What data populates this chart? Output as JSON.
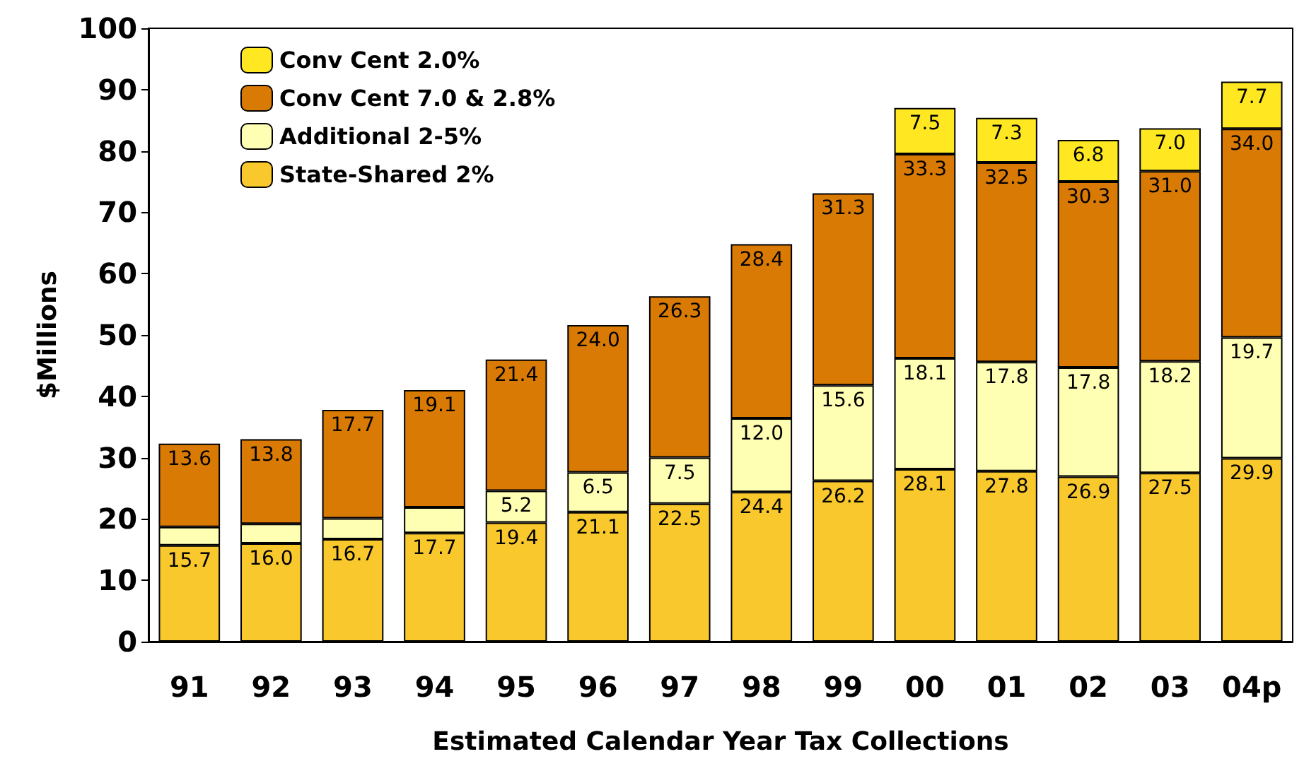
{
  "chart_data": {
    "type": "bar",
    "stacked": true,
    "xlabel": "Estimated Calendar Year Tax Collections",
    "ylabel": "$Millions",
    "categories": [
      "91",
      "92",
      "93",
      "94",
      "95",
      "96",
      "97",
      "98",
      "99",
      "00",
      "01",
      "02",
      "03",
      "04p"
    ],
    "ylim": [
      0,
      100
    ],
    "yticks": [
      0,
      10,
      20,
      30,
      40,
      50,
      60,
      70,
      80,
      90,
      100
    ],
    "grid": false,
    "legend": "top left",
    "series": [
      {
        "name": "State-Shared 2%",
        "color": "#f8c82c",
        "values": [
          15.7,
          16.0,
          16.7,
          17.7,
          19.4,
          21.1,
          22.5,
          24.4,
          26.2,
          28.1,
          27.8,
          26.9,
          27.5,
          29.9
        ],
        "value_labels": [
          "15.7",
          "16.0",
          "16.7",
          "17.7",
          "19.4",
          "21.1",
          "22.5",
          "24.4",
          "26.2",
          "28.1",
          "27.8",
          "26.9",
          "27.5",
          "29.9"
        ]
      },
      {
        "name": "Additional 2-5%",
        "color": "#ffffb3",
        "values": [
          3.0,
          3.2,
          3.4,
          4.2,
          5.2,
          6.5,
          7.5,
          12.0,
          15.6,
          18.1,
          17.8,
          17.8,
          18.2,
          19.7
        ],
        "value_labels": [
          null,
          null,
          null,
          null,
          "5.2",
          "6.5",
          "7.5",
          "12.0",
          "15.6",
          "18.1",
          "17.8",
          "17.8",
          "18.2",
          "19.7"
        ]
      },
      {
        "name": "Conv Cent 7.0 & 2.8%",
        "color": "#d97a05",
        "values": [
          13.6,
          13.8,
          17.7,
          19.1,
          21.4,
          24.0,
          26.3,
          28.4,
          31.3,
          33.3,
          32.5,
          30.3,
          31.0,
          34.0
        ],
        "value_labels": [
          "13.6",
          "13.8",
          "17.7",
          "19.1",
          "21.4",
          "24.0",
          "26.3",
          "28.4",
          "31.3",
          "33.3",
          "32.5",
          "30.3",
          "31.0",
          "34.0"
        ]
      },
      {
        "name": "Conv Cent 2.0%",
        "color": "#ffe822",
        "values": [
          null,
          null,
          null,
          null,
          null,
          null,
          null,
          null,
          null,
          7.5,
          7.3,
          6.8,
          7.0,
          7.7
        ],
        "value_labels": [
          null,
          null,
          null,
          null,
          null,
          null,
          null,
          null,
          null,
          "7.5",
          "7.3",
          "6.8",
          "7.0",
          "7.7"
        ]
      }
    ]
  }
}
